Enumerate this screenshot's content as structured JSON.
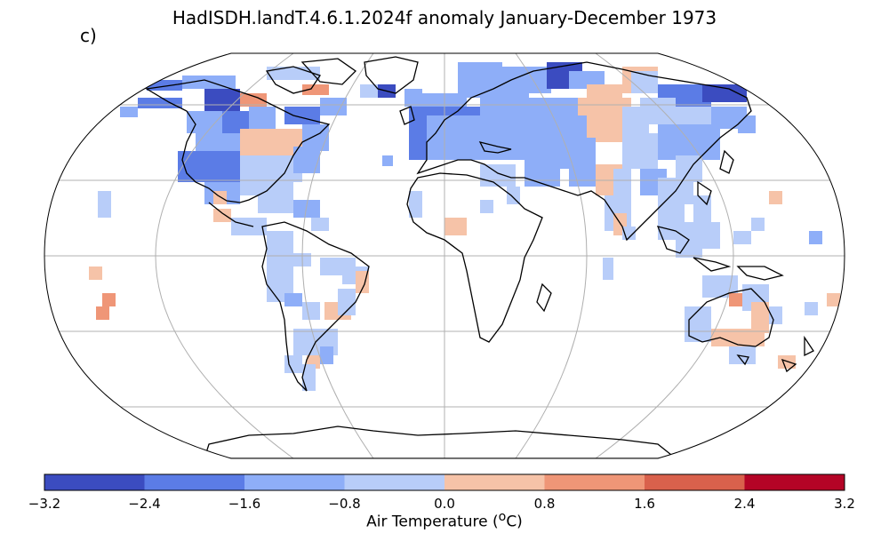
{
  "title": "HadISDH.landT.4.6.1.2024f anomaly January-December 1973",
  "panel_label": "c)",
  "colorbar": {
    "label_prefix": "Air Temperature (",
    "label_sup": "o",
    "label_suffix": "C)",
    "ticks": [
      "−3.2",
      "−2.4",
      "−1.6",
      "−0.8",
      "0.0",
      "0.8",
      "1.6",
      "2.4",
      "3.2"
    ],
    "tick_values": [
      -3.2,
      -2.4,
      -1.6,
      -0.8,
      0.0,
      0.8,
      1.6,
      2.4,
      3.2
    ],
    "colors": [
      "#3b4cc0",
      "#5b7ce6",
      "#8eaef8",
      "#b8cdf9",
      "#f6c3a8",
      "#ef9677",
      "#d9614c",
      "#b40426"
    ]
  },
  "map": {
    "projection": "Robinson",
    "gridlines": true,
    "coastlines": true
  }
}
